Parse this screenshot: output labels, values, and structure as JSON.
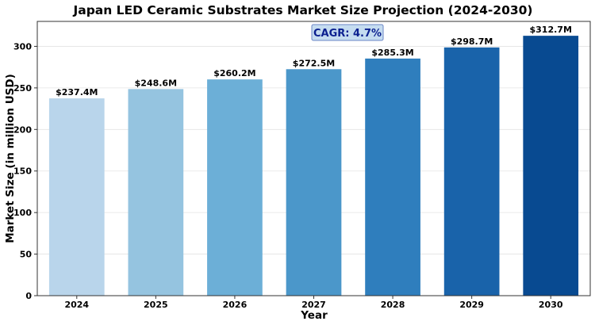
{
  "chart_data": {
    "type": "bar",
    "title": "Japan LED Ceramic Substrates Market Size Projection (2024-2030)",
    "xlabel": "Year",
    "ylabel": "Market Size (in million USD)",
    "categories": [
      "2024",
      "2025",
      "2026",
      "2027",
      "2028",
      "2029",
      "2030"
    ],
    "values": [
      237.4,
      248.6,
      260.2,
      272.5,
      285.3,
      298.7,
      312.7
    ],
    "data_labels": [
      "$237.4M",
      "$248.6M",
      "$260.2M",
      "$272.5M",
      "$285.3M",
      "$298.7M",
      "$312.7M"
    ],
    "colors": [
      "#b9d5eb",
      "#95c4e0",
      "#6cafd7",
      "#4b97ca",
      "#2f7ebd",
      "#1963aa",
      "#084a91"
    ],
    "ylim": [
      0,
      330
    ],
    "yticks": [
      0,
      50,
      100,
      150,
      200,
      250,
      300
    ],
    "grid": true,
    "annotation": "CAGR: 4.7%",
    "annotation_bg": "#c5dcf0",
    "annotation_color": "#0a1f8f"
  }
}
